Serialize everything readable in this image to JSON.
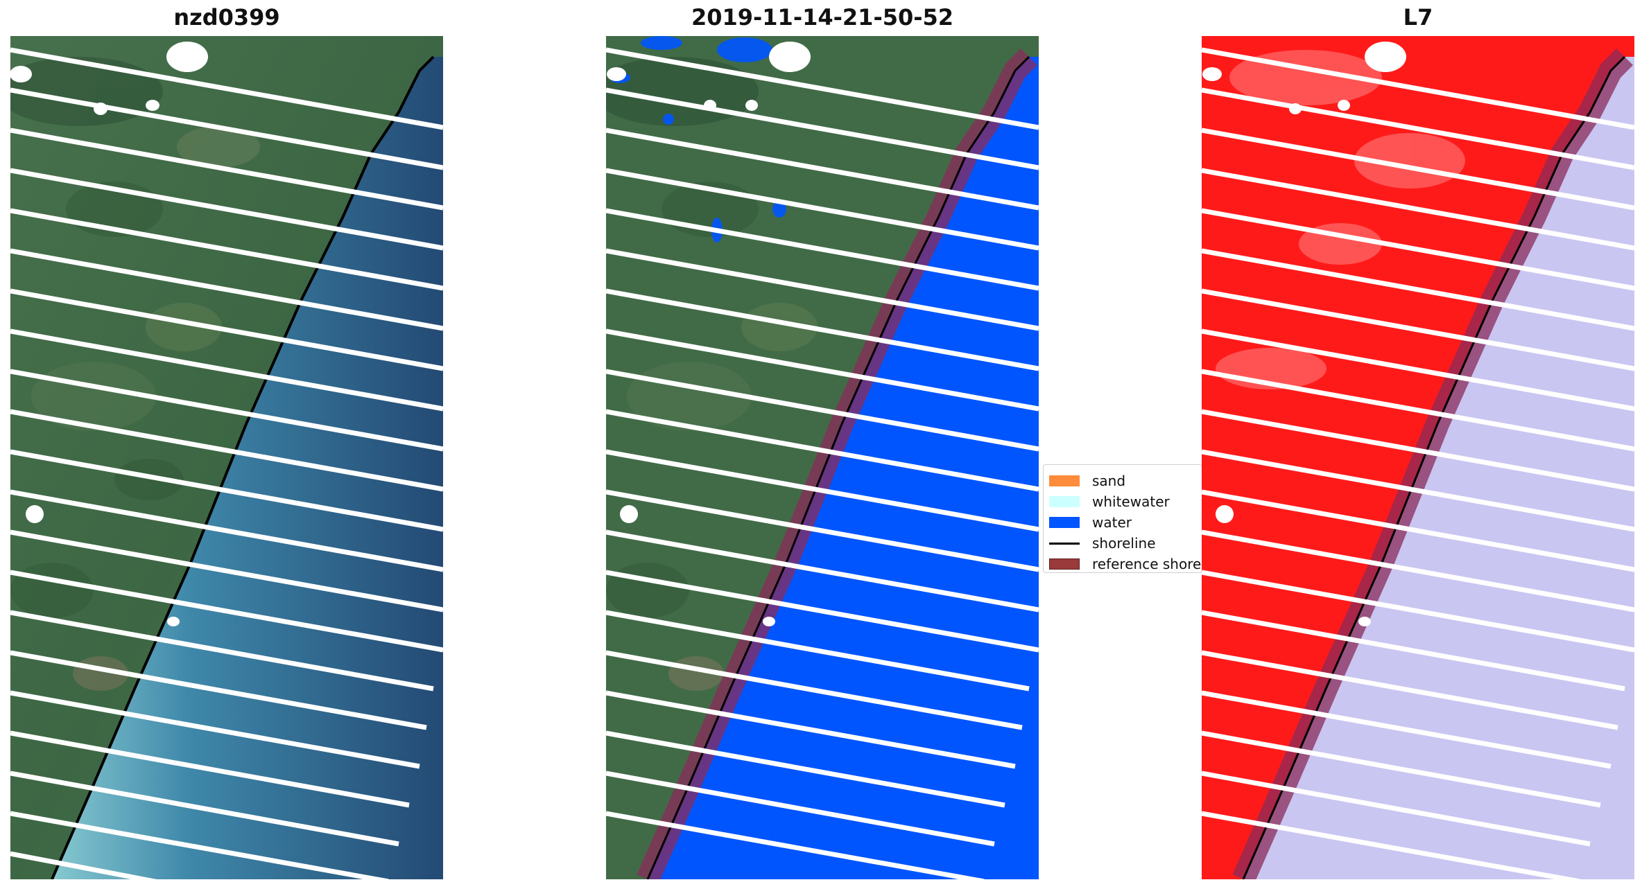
{
  "panels": [
    {
      "title": "nzd0399"
    },
    {
      "title": "2019-11-14-21-50-52"
    },
    {
      "title": "L7"
    }
  ],
  "legend": {
    "items": [
      {
        "label": "sand",
        "color": "#ff8c3a"
      },
      {
        "label": "whitewater",
        "color": "#ccffff"
      },
      {
        "label": "water",
        "color": "#0055ff"
      },
      {
        "label": "shoreline",
        "color": "#000000"
      },
      {
        "label": "reference shoreline",
        "color": "#9b3a3a"
      }
    ]
  },
  "colors": {
    "land": "#3f6b45",
    "sea": "#2e5a86",
    "water_class": "#0055ff",
    "ref_buffer": "#8a2b5a",
    "red_band": "#ff1a1a",
    "lavender": "#c9c6f2",
    "cloud": "#ffffff",
    "scanline": "#ffffff"
  }
}
